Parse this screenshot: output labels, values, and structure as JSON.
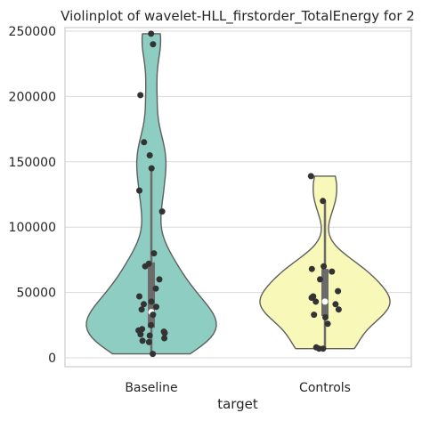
{
  "chart_data": {
    "type": "violin",
    "title": "Violinplot of wavelet-HLL_firstorder_TotalEnergy for 2",
    "xlabel": "target",
    "ylabel": "",
    "categories": [
      "Baseline",
      "Controls"
    ],
    "ylim": [
      -10000,
      260000
    ],
    "yticks": [
      0,
      50000,
      100000,
      150000,
      200000,
      250000
    ],
    "ytick_labels": [
      "0",
      "50000",
      "100000",
      "150000",
      "200000",
      "250000"
    ],
    "grid": "horizontal",
    "series": [
      {
        "category": "Baseline",
        "fill": "#8ecdc1",
        "range": [
          3000,
          248000
        ],
        "box": {
          "q1": 23000,
          "median": 35000,
          "q3": 73000,
          "whisker_low": 3000,
          "whisker_high": 145000
        },
        "points": [
          248000,
          240000,
          201000,
          165000,
          155000,
          145000,
          128000,
          112000,
          80000,
          72000,
          70000,
          60000,
          53000,
          47000,
          43000,
          41000,
          39000,
          37000,
          33000,
          25000,
          22000,
          21000,
          20000,
          19000,
          18000,
          17000,
          15000,
          13000,
          12000,
          3000
        ]
      },
      {
        "category": "Controls",
        "fill": "#f8f8b9",
        "range": [
          7000,
          139000
        ],
        "box": {
          "q1": 32000,
          "median": 43000,
          "q3": 68000,
          "whisker_low": 7000,
          "whisker_high": 120000
        },
        "points": [
          139000,
          120000,
          70000,
          68000,
          66000,
          60000,
          51000,
          47000,
          46000,
          43000,
          41000,
          37000,
          33000,
          31000,
          26000,
          8000,
          7000,
          7000
        ]
      }
    ]
  }
}
